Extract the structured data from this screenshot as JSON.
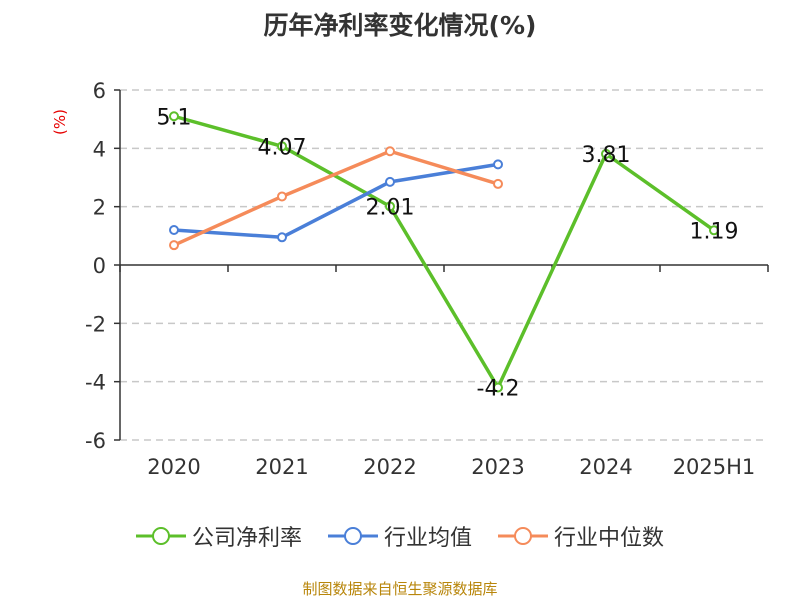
{
  "chart_data": {
    "type": "line",
    "title": "历年净利率变化情况(%)",
    "ylabel": "(%)",
    "categories": [
      "2020",
      "2021",
      "2022",
      "2023",
      "2024",
      "2025H1"
    ],
    "ylim": [
      -6,
      6
    ],
    "yticks": [
      6,
      4,
      2,
      0,
      -2,
      -4,
      -6
    ],
    "grid": true,
    "legend_position": "bottom",
    "series": [
      {
        "name": "公司净利率",
        "color": "#5cbf2a",
        "values": [
          5.1,
          4.07,
          2.01,
          -4.2,
          3.81,
          1.19
        ],
        "labels": [
          "5.1",
          "4.07",
          "2.01",
          "-4.2",
          "3.81",
          "1.19"
        ],
        "show_labels": true
      },
      {
        "name": "行业均值",
        "color": "#4a7fd8",
        "values": [
          1.2,
          0.95,
          2.85,
          3.45,
          null,
          null
        ],
        "show_labels": false
      },
      {
        "name": "行业中位数",
        "color": "#f58b5a",
        "values": [
          0.68,
          2.35,
          3.9,
          2.78,
          null,
          null
        ],
        "show_labels": false
      }
    ]
  },
  "source": "制图数据来自恒生聚源数据库"
}
